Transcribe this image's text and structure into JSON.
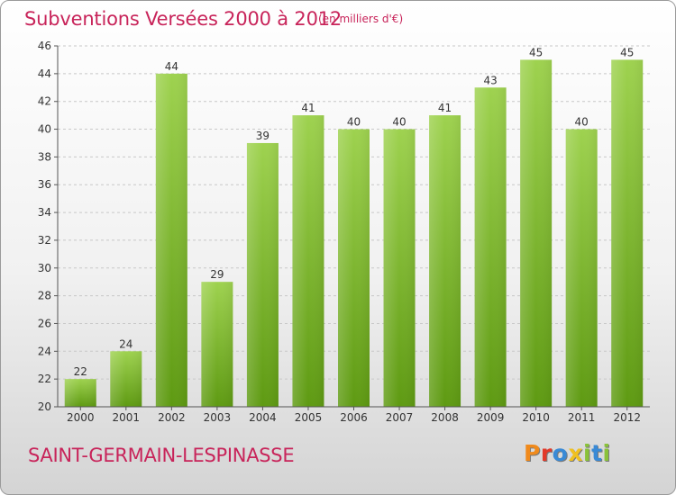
{
  "title": "Subventions Versées 2000 à 2012",
  "unit_note": "(en milliers d'€)",
  "location": "SAINT-GERMAIN-LESPINASSE",
  "brand": {
    "letters": [
      "P",
      "r",
      "o",
      "x",
      "i",
      "t",
      "i"
    ],
    "colors": [
      "#f08a1c",
      "#e23a2a",
      "#3a8ad6",
      "#f0c020",
      "#8ac23a",
      "#3a8ad6",
      "#8ac23a"
    ]
  },
  "colors": {
    "bar_light": "#9ed24f",
    "bar_dark": "#5e9a12",
    "accent": "#c8245a",
    "grid": "#c8c8c8",
    "axis": "#555555"
  },
  "chart_data": {
    "type": "bar",
    "categories": [
      "2000",
      "2001",
      "2002",
      "2003",
      "2004",
      "2005",
      "2006",
      "2007",
      "2008",
      "2009",
      "2010",
      "2011",
      "2012"
    ],
    "values": [
      22,
      24,
      44,
      29,
      39,
      41,
      40,
      40,
      41,
      43,
      45,
      40,
      45
    ],
    "yticks": [
      20,
      22,
      24,
      26,
      28,
      30,
      32,
      34,
      36,
      38,
      40,
      42,
      44,
      46
    ],
    "ylim": [
      20,
      46
    ],
    "grid": "horizontal dashed",
    "data_labels": true
  }
}
